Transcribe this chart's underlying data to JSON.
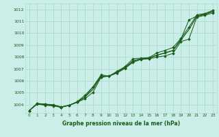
{
  "title": "Graphe pression niveau de la mer (hPa)",
  "bg_color": "#cceee8",
  "grid_color": "#aaddcc",
  "line_color": "#1a5c1a",
  "bottom_bar_color": "#1a5c1a",
  "text_color": "#1a5c1a",
  "xlim": [
    -0.5,
    23.5
  ],
  "ylim": [
    1003.3,
    1012.5
  ],
  "xticks": [
    0,
    1,
    2,
    3,
    4,
    5,
    6,
    7,
    8,
    9,
    10,
    11,
    12,
    13,
    14,
    15,
    16,
    17,
    18,
    19,
    20,
    21,
    22,
    23
  ],
  "yticks": [
    1004,
    1005,
    1006,
    1007,
    1008,
    1009,
    1010,
    1011,
    1012
  ],
  "series_with_markers": [
    [
      1003.5,
      1004.05,
      1003.95,
      1003.9,
      1003.78,
      1003.95,
      1004.2,
      1004.5,
      1005.05,
      1006.3,
      1006.4,
      1006.65,
      1007.05,
      1007.55,
      1007.8,
      1007.85,
      1008.0,
      1008.1,
      1008.3,
      1009.3,
      1009.5,
      1011.35,
      1011.5,
      1011.7
    ],
    [
      1003.5,
      1004.1,
      1004.05,
      1003.95,
      1003.78,
      1003.95,
      1004.25,
      1004.8,
      1005.5,
      1006.35,
      1006.4,
      1006.75,
      1007.1,
      1007.65,
      1007.85,
      1007.9,
      1008.15,
      1008.35,
      1008.55,
      1009.5,
      1011.1,
      1011.45,
      1011.6,
      1011.82
    ],
    [
      1003.5,
      1004.1,
      1004.05,
      1004.0,
      1003.82,
      1003.95,
      1004.2,
      1004.65,
      1005.5,
      1006.5,
      1006.4,
      1006.8,
      1007.2,
      1007.85,
      1007.9,
      1007.95,
      1008.35,
      1008.55,
      1008.8,
      1009.55,
      1010.5,
      1011.55,
      1011.65,
      1011.92
    ]
  ],
  "series_smooth": [
    [
      1003.5,
      1004.08,
      1004.0,
      1003.95,
      1003.8,
      1003.95,
      1004.22,
      1004.65,
      1005.3,
      1006.4,
      1006.4,
      1006.73,
      1007.12,
      1007.68,
      1007.85,
      1007.9,
      1008.17,
      1008.33,
      1008.55,
      1009.42,
      1010.3,
      1011.42,
      1011.58,
      1011.82
    ]
  ]
}
